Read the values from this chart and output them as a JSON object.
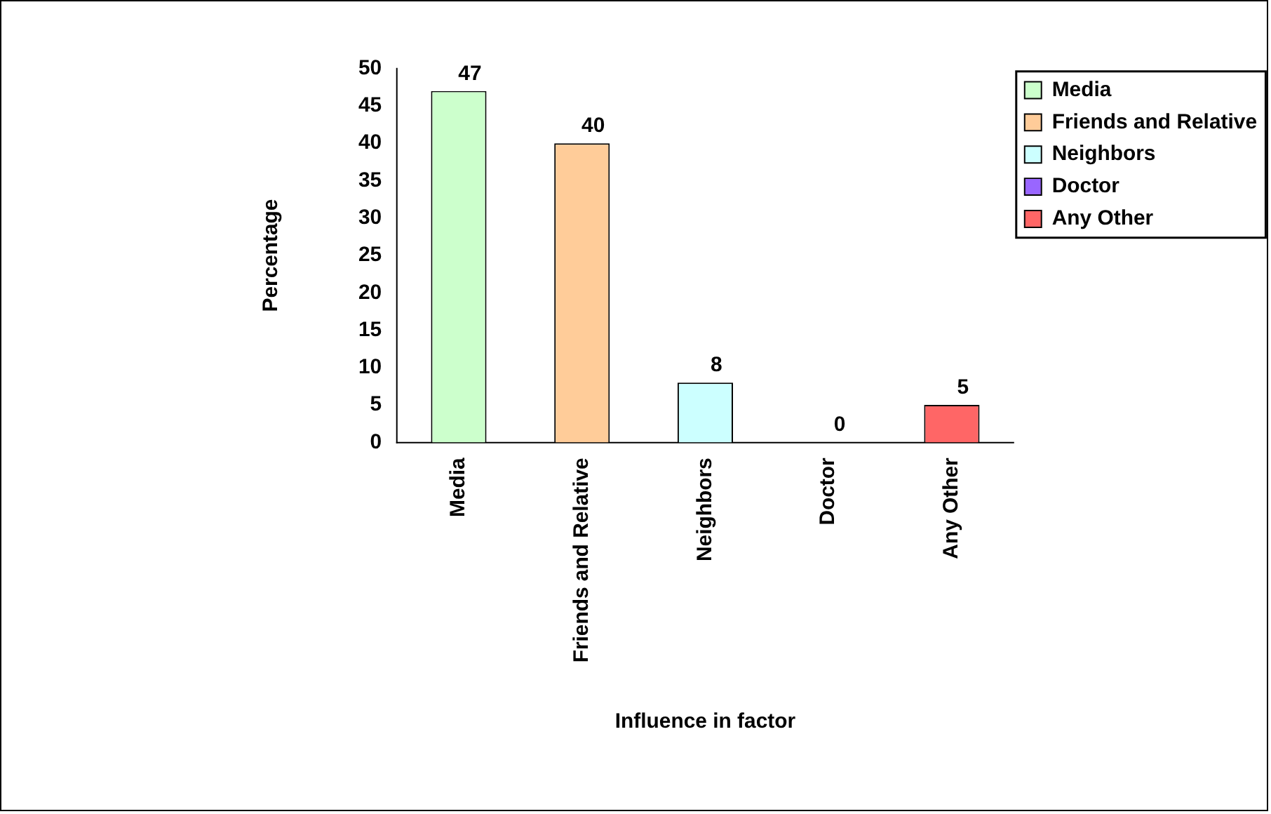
{
  "chart_data": {
    "type": "bar",
    "xlabel": "Influence in factor",
    "ylabel": "Percentage",
    "categories": [
      "Media",
      "Friends and Relative",
      "Neighbors",
      "Doctor",
      "Any Other"
    ],
    "series": [
      {
        "name": "Media",
        "color": "#ccffcc",
        "values": [
          47,
          null,
          null,
          null,
          null
        ]
      },
      {
        "name": "Friends and Relative",
        "color": "#ffcc99",
        "values": [
          null,
          40,
          null,
          null,
          null
        ]
      },
      {
        "name": "Neighbors",
        "color": "#ccffff",
        "values": [
          null,
          null,
          8,
          null,
          null
        ]
      },
      {
        "name": "Doctor",
        "color": "#9966ff",
        "values": [
          null,
          null,
          null,
          0,
          null
        ]
      },
      {
        "name": "Any Other",
        "color": "#ff6666",
        "values": [
          null,
          null,
          null,
          null,
          5
        ]
      }
    ],
    "ylim": [
      0,
      50
    ],
    "yticks": [
      0,
      5,
      10,
      15,
      20,
      25,
      30,
      35,
      40,
      45,
      50
    ],
    "grid": false,
    "legend": "top right",
    "data_labels": true
  }
}
